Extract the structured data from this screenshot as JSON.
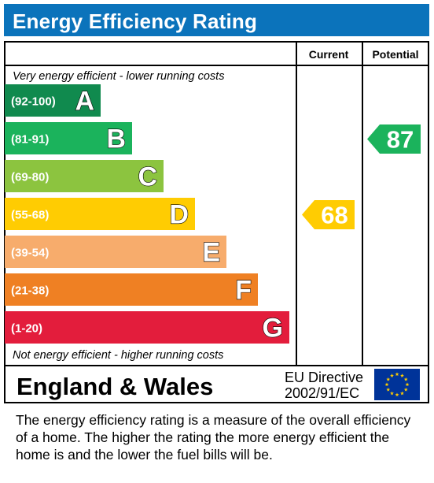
{
  "title": "Energy Efficiency Rating",
  "columns": {
    "current": "Current",
    "potential": "Potential"
  },
  "top_note": "Very energy efficient - lower running costs",
  "bottom_note": "Not energy efficient - higher running costs",
  "region": "England & Wales",
  "directive": {
    "line1": "EU Directive",
    "line2": "2002/91/EC"
  },
  "footnote": "The energy efficiency rating is a measure of the overall efficiency of a home.  The higher the rating the more energy efficient the home is and the lower the fuel bills will be.",
  "chart_data": {
    "type": "bar",
    "title": "Energy Efficiency Rating",
    "bands": [
      {
        "range": "(92-100)",
        "letter": "A",
        "color": "#108a4e"
      },
      {
        "range": "(81-91)",
        "letter": "B",
        "color": "#1bb35c"
      },
      {
        "range": "(69-80)",
        "letter": "C",
        "color": "#8cc43f"
      },
      {
        "range": "(55-68)",
        "letter": "D",
        "color": "#ffcc02"
      },
      {
        "range": "(39-54)",
        "letter": "E",
        "color": "#f7ac6c"
      },
      {
        "range": "(21-38)",
        "letter": "F",
        "color": "#ef8023"
      },
      {
        "range": "(1-20)",
        "letter": "G",
        "color": "#e31d3c"
      }
    ],
    "current": {
      "value": 68,
      "band": "D",
      "color": "#ffcc02"
    },
    "potential": {
      "value": 87,
      "band": "B",
      "color": "#1bb35c"
    }
  }
}
